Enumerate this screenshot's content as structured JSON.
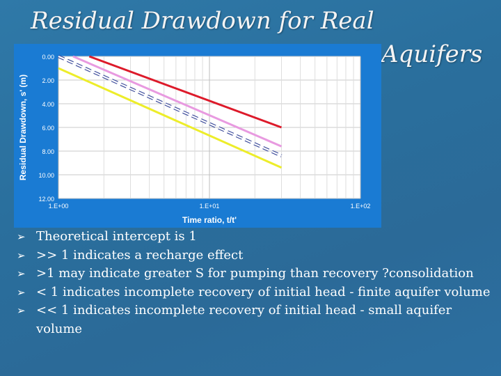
{
  "slide": {
    "title_line1": "Residual Drawdown for Real",
    "title_line2": "Aquifers",
    "bullets": [
      {
        "text": "Theoretical intercept is 1"
      },
      {
        "text": ">> 1 indicates a recharge effect"
      },
      {
        "text": ">1 may indicate greater S for pumping than recovery ?consolidation"
      },
      {
        "text": "< 1   indicates incomplete recovery of initial head - finite aquifer volume"
      },
      {
        "text": "<< 1 indicates incomplete recovery of initial head - small aquifer volume"
      }
    ],
    "bullet_icon": "arrow-bullet-icon"
  },
  "chart_data": {
    "type": "line",
    "title": "",
    "xlabel": "Time ratio, t/t'",
    "ylabel": "Residual Drawdown, s' (m)",
    "x_scale": "log",
    "xlim": [
      1,
      100
    ],
    "ylim": [
      0,
      12
    ],
    "y_inverted": true,
    "grid": true,
    "x_ticks": [
      {
        "v": 1,
        "label": "1.E+00"
      },
      {
        "v": 10,
        "label": "1.E+01"
      },
      {
        "v": 100,
        "label": "1.E+02"
      }
    ],
    "y_ticks": [
      {
        "v": 0,
        "label": "0.00"
      },
      {
        "v": 2,
        "label": "2.00"
      },
      {
        "v": 4,
        "label": "4.00"
      },
      {
        "v": 6,
        "label": "6.00"
      },
      {
        "v": 8,
        "label": "8.00"
      },
      {
        "v": 10,
        "label": "10.00"
      },
      {
        "v": 12,
        "label": "12.00"
      }
    ],
    "series": [
      {
        "color": "#dd1a2a",
        "dash": false,
        "points": [
          [
            1.6,
            0.0
          ],
          [
            30,
            6.0
          ]
        ]
      },
      {
        "color": "#e89ae0",
        "dash": false,
        "points": [
          [
            1.25,
            0.0
          ],
          [
            30,
            7.6
          ]
        ]
      },
      {
        "color": "#ffffff",
        "dash": true,
        "points": [
          [
            1.0,
            0.0
          ],
          [
            30,
            8.4
          ]
        ]
      },
      {
        "color": "#eded2a",
        "dash": false,
        "points": [
          [
            1.0,
            1.0
          ],
          [
            30,
            9.4
          ]
        ]
      }
    ]
  }
}
